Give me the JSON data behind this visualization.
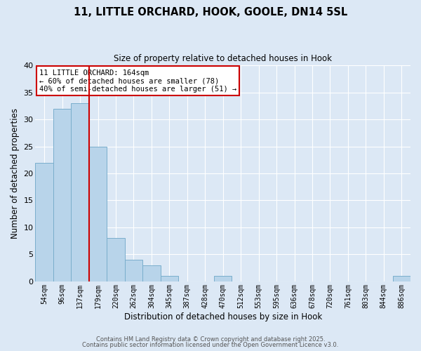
{
  "title_line1": "11, LITTLE ORCHARD, HOOK, GOOLE, DN14 5SL",
  "title_line2": "Size of property relative to detached houses in Hook",
  "xlabel": "Distribution of detached houses by size in Hook",
  "ylabel": "Number of detached properties",
  "categories": [
    "54sqm",
    "96sqm",
    "137sqm",
    "179sqm",
    "220sqm",
    "262sqm",
    "304sqm",
    "345sqm",
    "387sqm",
    "428sqm",
    "470sqm",
    "512sqm",
    "553sqm",
    "595sqm",
    "636sqm",
    "678sqm",
    "720sqm",
    "761sqm",
    "803sqm",
    "844sqm",
    "886sqm"
  ],
  "values": [
    22,
    32,
    33,
    25,
    8,
    4,
    3,
    1,
    0,
    0,
    1,
    0,
    0,
    0,
    0,
    0,
    0,
    0,
    0,
    0,
    1
  ],
  "bar_color": "#b8d4ea",
  "bar_edge_color": "#7aaecc",
  "vline_x": 2.5,
  "vline_color": "#cc0000",
  "annotation_title": "11 LITTLE ORCHARD: 164sqm",
  "annotation_line2": "← 60% of detached houses are smaller (78)",
  "annotation_line3": "40% of semi-detached houses are larger (51) →",
  "annotation_box_facecolor": "#ffffff",
  "annotation_box_edgecolor": "#cc0000",
  "ylim": [
    0,
    40
  ],
  "yticks": [
    0,
    5,
    10,
    15,
    20,
    25,
    30,
    35,
    40
  ],
  "bg_color": "#dce8f5",
  "grid_color": "#ffffff",
  "footer1": "Contains HM Land Registry data © Crown copyright and database right 2025.",
  "footer2": "Contains public sector information licensed under the Open Government Licence v3.0."
}
